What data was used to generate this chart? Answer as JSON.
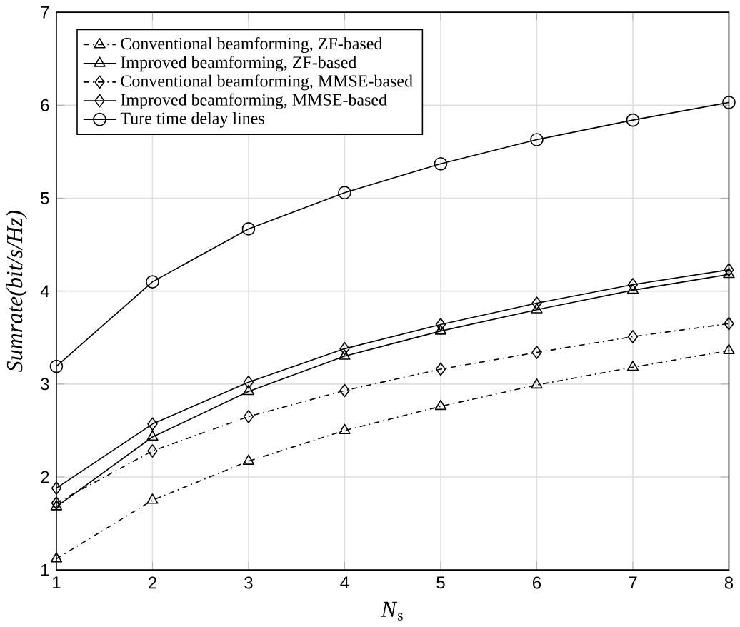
{
  "chart_data": {
    "type": "line",
    "xlabel": "*N*$_{s}$",
    "ylabel": "Sumrate(bit/s/Hz)",
    "x": [
      1,
      2,
      3,
      4,
      5,
      6,
      7,
      8
    ],
    "series": [
      {
        "name": "Conventional beamforming, ZF-based",
        "color": "#000000",
        "marker": "triangle",
        "line_style": "dashdot",
        "values": [
          1.12,
          1.75,
          2.17,
          2.5,
          2.76,
          2.99,
          3.18,
          3.36
        ]
      },
      {
        "name": "Improved beamforming, ZF-based",
        "color": "#000000",
        "marker": "triangle",
        "line_style": "solid",
        "values": [
          1.68,
          2.43,
          2.92,
          3.3,
          3.57,
          3.8,
          4.01,
          4.18
        ]
      },
      {
        "name": "Conventional beamforming, MMSE-based",
        "color": "#000000",
        "marker": "diamond",
        "line_style": "dashdot",
        "values": [
          1.72,
          2.28,
          2.65,
          2.93,
          3.16,
          3.34,
          3.51,
          3.65
        ]
      },
      {
        "name": "Improved beamforming, MMSE-based",
        "color": "#000000",
        "marker": "diamond",
        "line_style": "solid",
        "values": [
          1.88,
          2.57,
          3.02,
          3.38,
          3.64,
          3.87,
          4.07,
          4.23
        ]
      },
      {
        "name": "Ture time delay lines",
        "color": "#000000",
        "marker": "circle",
        "line_style": "solid",
        "values": [
          3.19,
          4.1,
          4.67,
          5.06,
          5.37,
          5.63,
          5.84,
          6.03
        ]
      }
    ],
    "xlim": [
      1,
      8
    ],
    "ylim": [
      1,
      7
    ],
    "xticks": [
      1,
      2,
      3,
      4,
      5,
      6,
      7,
      8
    ],
    "yticks": [
      1,
      2,
      3,
      4,
      5,
      6,
      7
    ],
    "grid": true,
    "legend": "top left"
  }
}
